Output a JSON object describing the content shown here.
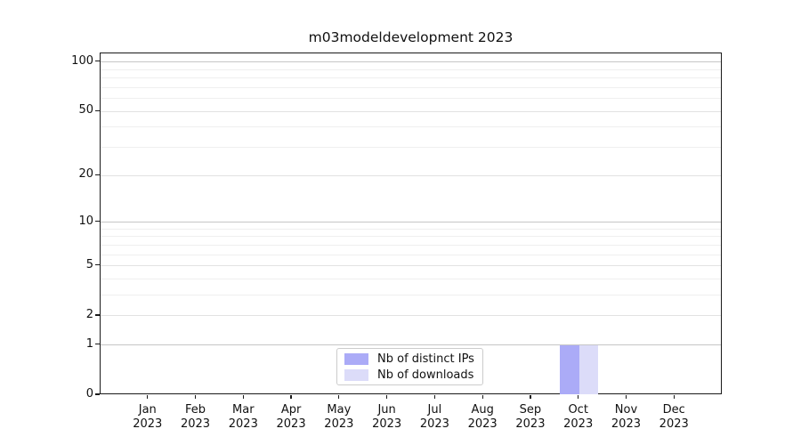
{
  "title": "m03modeldevelopment 2023",
  "chart_data": {
    "type": "bar",
    "title": "m03modeldevelopment 2023",
    "months": [
      "Jan",
      "Feb",
      "Mar",
      "Apr",
      "May",
      "Jun",
      "Jul",
      "Aug",
      "Sep",
      "Oct",
      "Nov",
      "Dec"
    ],
    "year": "2023",
    "series": [
      {
        "name": "Nb of distinct IPs",
        "color": "#ababf7",
        "values": [
          0,
          0,
          0,
          0,
          0,
          0,
          0,
          0,
          0,
          1,
          0,
          0
        ]
      },
      {
        "name": "Nb of downloads",
        "color": "#dcdcf9",
        "values": [
          0,
          0,
          0,
          0,
          0,
          0,
          0,
          0,
          0,
          1,
          0,
          0
        ]
      }
    ],
    "yscale": "log1p",
    "ylim": [
      0,
      113
    ],
    "yticks_major": [
      0,
      1,
      2,
      5,
      10,
      20,
      50,
      100
    ],
    "yticks_minor": [
      3,
      4,
      6,
      7,
      8,
      9,
      30,
      40,
      60,
      70,
      80,
      90
    ],
    "emphasized_gridlines": [
      1,
      10,
      100
    ],
    "grid": true,
    "legend_position": "lower center"
  }
}
